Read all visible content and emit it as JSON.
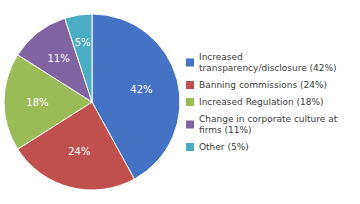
{
  "chart_data": {
    "type": "pie",
    "categories": [
      "Increased\ntransparency/disclosure (42%)",
      "Banning commissions (24%)",
      "Increased Regulation (18%)",
      "Change in corporate culture at\nfirms (11%)",
      "Other (5%)"
    ],
    "values": [
      42,
      24,
      18,
      11,
      5
    ],
    "value_labels": [
      "42%",
      "24%",
      "18%",
      "11%",
      "5%"
    ],
    "colors": [
      "#4472C4",
      "#C0504D",
      "#9BBB59",
      "#8064A2",
      "#4BACC6"
    ],
    "data_labels": true
  }
}
